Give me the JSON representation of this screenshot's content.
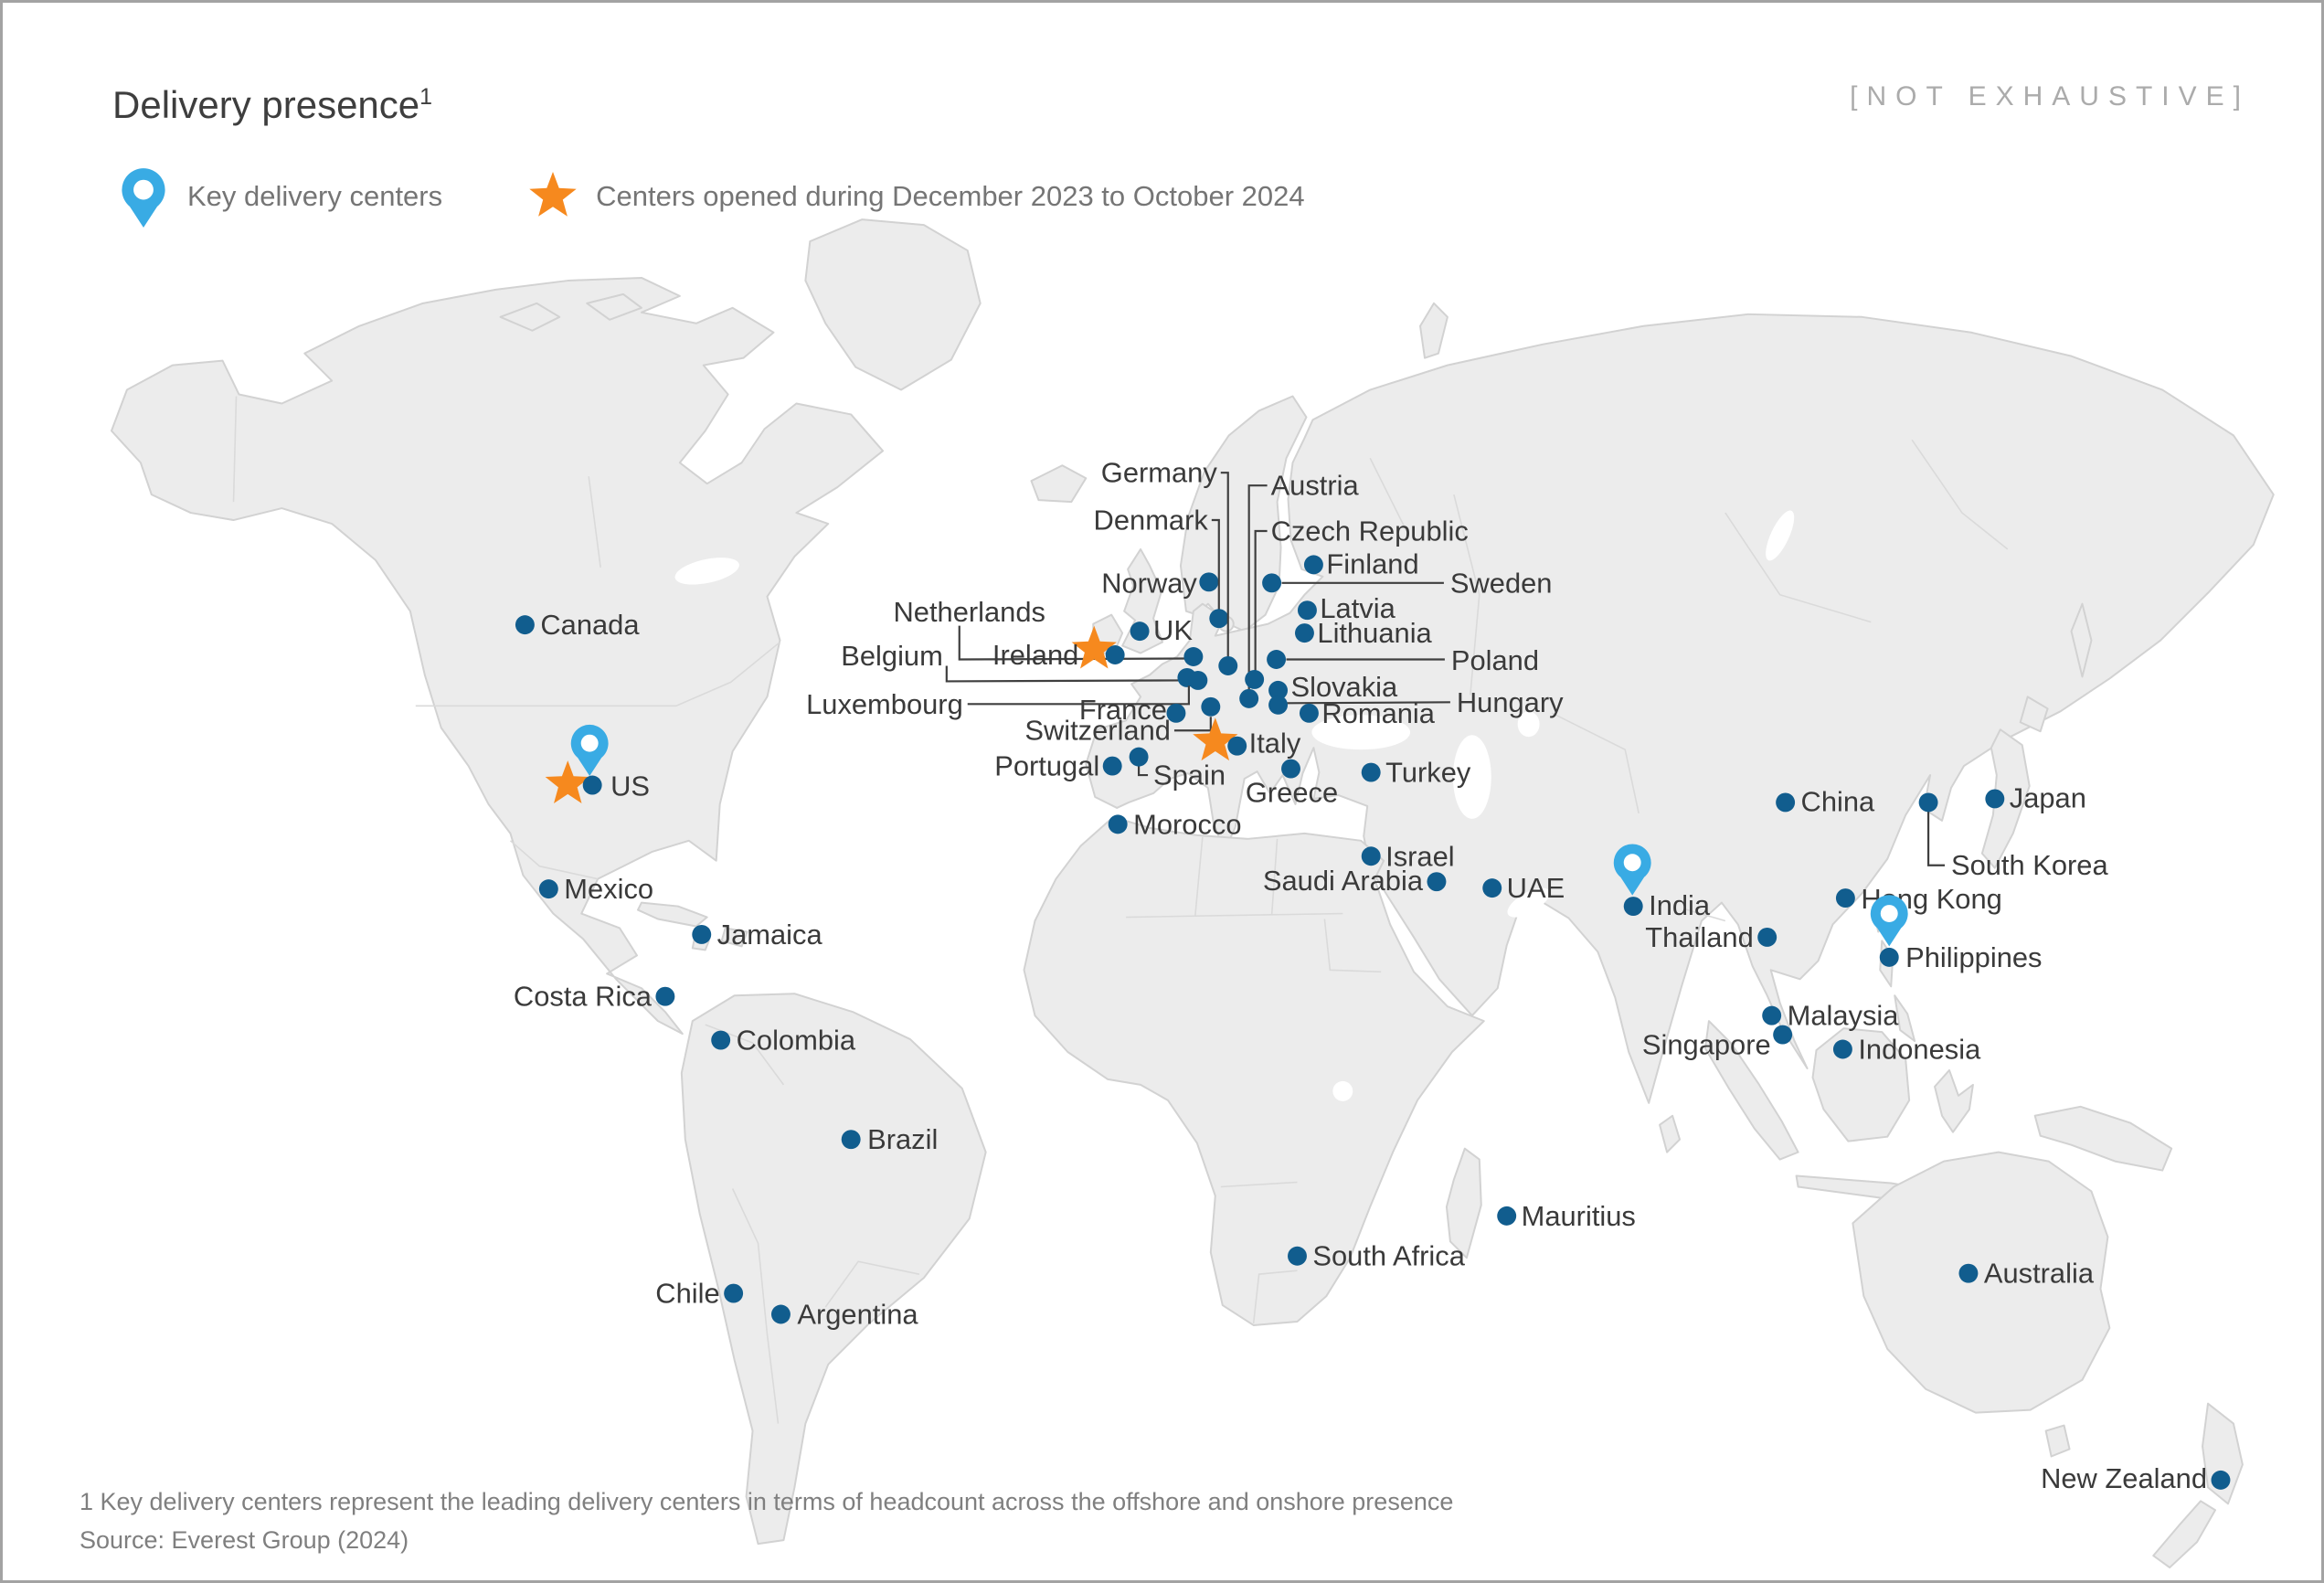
{
  "slide": {
    "title": "Delivery presence",
    "title_superscript": "1",
    "tag": "[NOT EXHAUSTIVE]"
  },
  "legend": {
    "items": [
      {
        "icon": "pin-icon",
        "label": "Key delivery centers"
      },
      {
        "icon": "star-icon",
        "label": "Centers opened during December 2023 to October 2024"
      }
    ]
  },
  "footnote": {
    "line1": "1 Key delivery centers represent the leading delivery centers in terms of headcount across the offshore and onshore presence",
    "line2": "Source: Everest Group (2024)"
  },
  "colors": {
    "dot": "#115d8e",
    "pin": "#39abe4",
    "star": "#f6891e",
    "land": "#ececec",
    "land_border": "#d2d2d2",
    "label_text": "#3a3a3a",
    "muted_text": "#757575",
    "tag_text": "#ababab",
    "line": "#3f3f3f"
  },
  "map": {
    "markers": [
      {
        "name": "canada",
        "label": "Canada",
        "dot": [
          572,
          683
        ],
        "label_pos": [
          589,
          683
        ],
        "align": "left"
      },
      {
        "name": "us",
        "label": "US",
        "dot": [
          646,
          859
        ],
        "label_pos": [
          666,
          860
        ],
        "align": "left",
        "star": [
          619,
          858
        ],
        "pin": [
          643,
          849
        ]
      },
      {
        "name": "mexico",
        "label": "Mexico",
        "dot": [
          598,
          973
        ],
        "label_pos": [
          615,
          973
        ],
        "align": "left"
      },
      {
        "name": "jamaica",
        "label": "Jamaica",
        "dot": [
          766,
          1023
        ],
        "label_pos": [
          783,
          1023
        ],
        "align": "left"
      },
      {
        "name": "costa-rica",
        "label": "Costa Rica",
        "dot": [
          726,
          1091
        ],
        "label_pos": [
          711,
          1091
        ],
        "align": "right"
      },
      {
        "name": "colombia",
        "label": "Colombia",
        "dot": [
          787,
          1139
        ],
        "label_pos": [
          804,
          1139
        ],
        "align": "left"
      },
      {
        "name": "brazil",
        "label": "Brazil",
        "dot": [
          930,
          1248
        ],
        "label_pos": [
          948,
          1248
        ],
        "align": "left"
      },
      {
        "name": "chile",
        "label": "Chile",
        "dot": [
          801,
          1417
        ],
        "label_pos": [
          786,
          1417
        ],
        "align": "right"
      },
      {
        "name": "argentina",
        "label": "Argentina",
        "dot": [
          853,
          1440
        ],
        "label_pos": [
          871,
          1440
        ],
        "align": "left"
      },
      {
        "name": "norway",
        "label": "Norway",
        "dot": [
          1323,
          636
        ],
        "label_pos": [
          1310,
          637
        ],
        "align": "right"
      },
      {
        "name": "sweden",
        "label": "Sweden",
        "dot": [
          1392,
          637
        ],
        "label_pos": [
          1588,
          637
        ],
        "align": "left",
        "line": [
          [
            1403,
            637
          ],
          [
            1581,
            637
          ]
        ]
      },
      {
        "name": "finland",
        "label": "Finland",
        "dot": [
          1438,
          617
        ],
        "label_pos": [
          1452,
          616
        ],
        "align": "left"
      },
      {
        "name": "denmark",
        "label": "Denmark",
        "dot": [
          1334,
          676
        ],
        "label_pos": [
          1322,
          568
        ],
        "align": "right",
        "line": [
          [
            1326,
            568
          ],
          [
            1334,
            568
          ],
          [
            1334,
            668
          ]
        ]
      },
      {
        "name": "germany",
        "label": "Germany",
        "dot": [
          1344,
          728
        ],
        "label_pos": [
          1332,
          516
        ],
        "align": "right",
        "line": [
          [
            1336,
            516
          ],
          [
            1344,
            516
          ],
          [
            1344,
            720
          ]
        ]
      },
      {
        "name": "netherlands",
        "label": "Netherlands",
        "dot": [
          1306,
          718
        ],
        "label_pos": [
          1060,
          669
        ],
        "align": "center",
        "line": [
          [
            1049,
            684
          ],
          [
            1049,
            721
          ],
          [
            1297,
            720
          ]
        ]
      },
      {
        "name": "belgium",
        "label": "Belgium",
        "dot": [
          1299,
          741
        ],
        "label_pos": [
          1031,
          717
        ],
        "align": "right",
        "line": [
          [
            1035,
            728
          ],
          [
            1035,
            745
          ],
          [
            1291,
            744
          ]
        ]
      },
      {
        "name": "luxembourg",
        "label": "Luxembourg",
        "dot": [
          1311,
          744
        ],
        "label_pos": [
          1053,
          770
        ],
        "align": "right",
        "line": [
          [
            1058,
            770
          ],
          [
            1301,
            770
          ],
          [
            1301,
            750
          ]
        ]
      },
      {
        "name": "ireland",
        "label": "Ireland",
        "dot": [
          1220,
          716
        ],
        "label_pos": [
          1180,
          716
        ],
        "align": "right",
        "star": [
          1197,
          710
        ]
      },
      {
        "name": "uk",
        "label": "UK",
        "dot": [
          1247,
          690
        ],
        "label_pos": [
          1262,
          689
        ],
        "align": "left"
      },
      {
        "name": "france",
        "label": "France",
        "dot": [
          1287,
          780
        ],
        "label_pos": [
          1277,
          776
        ],
        "align": "right"
      },
      {
        "name": "switzerland",
        "label": "Switzerland",
        "dot": [
          1325,
          773
        ],
        "label_pos": [
          1281,
          799
        ],
        "align": "right",
        "line": [
          [
            1285,
            799
          ],
          [
            1325,
            799
          ],
          [
            1325,
            784
          ]
        ]
      },
      {
        "name": "italy",
        "label": "Italy",
        "dot": [
          1354,
          816
        ],
        "label_pos": [
          1367,
          813
        ],
        "align": "left",
        "star": [
          1330,
          811
        ]
      },
      {
        "name": "spain",
        "label": "Spain",
        "dot": [
          1246,
          828
        ],
        "label_pos": [
          1262,
          848
        ],
        "align": "left",
        "line": [
          [
            1246,
            838
          ],
          [
            1246,
            848
          ],
          [
            1256,
            848
          ]
        ]
      },
      {
        "name": "portugal",
        "label": "Portugal",
        "dot": [
          1217,
          838
        ],
        "label_pos": [
          1203,
          838
        ],
        "align": "right"
      },
      {
        "name": "austria",
        "label": "Austria",
        "dot": [
          1367,
          764
        ],
        "label_pos": [
          1391,
          530
        ],
        "align": "left",
        "line": [
          [
            1387,
            530
          ],
          [
            1367,
            530
          ],
          [
            1367,
            756
          ]
        ]
      },
      {
        "name": "czech-republic",
        "label": "Czech Republic",
        "dot": [
          1373,
          743
        ],
        "label_pos": [
          1391,
          580
        ],
        "align": "left",
        "line": [
          [
            1387,
            580
          ],
          [
            1374,
            580
          ],
          [
            1374,
            735
          ]
        ]
      },
      {
        "name": "latvia",
        "label": "Latvia",
        "dot": [
          1431,
          667
        ],
        "label_pos": [
          1445,
          665
        ],
        "align": "left"
      },
      {
        "name": "lithuania",
        "label": "Lithuania",
        "dot": [
          1428,
          692
        ],
        "label_pos": [
          1442,
          692
        ],
        "align": "left"
      },
      {
        "name": "poland",
        "label": "Poland",
        "dot": [
          1397,
          721
        ],
        "label_pos": [
          1589,
          722
        ],
        "align": "left",
        "line": [
          [
            1408,
            721
          ],
          [
            1582,
            721
          ]
        ]
      },
      {
        "name": "slovakia",
        "label": "Slovakia",
        "dot": [
          1399,
          755
        ],
        "label_pos": [
          1413,
          751
        ],
        "align": "left"
      },
      {
        "name": "hungary",
        "label": "Hungary",
        "dot": [
          1399,
          771
        ],
        "label_pos": [
          1595,
          768
        ],
        "align": "left",
        "line": [
          [
            1409,
            769
          ],
          [
            1588,
            768
          ]
        ]
      },
      {
        "name": "romania",
        "label": "Romania",
        "dot": [
          1433,
          780
        ],
        "label_pos": [
          1447,
          780
        ],
        "align": "left"
      },
      {
        "name": "greece",
        "label": "Greece",
        "dot": [
          1413,
          841
        ],
        "label_pos": [
          1414,
          867
        ],
        "align": "center"
      },
      {
        "name": "turkey",
        "label": "Turkey",
        "dot": [
          1501,
          845
        ],
        "label_pos": [
          1517,
          845
        ],
        "align": "left"
      },
      {
        "name": "morocco",
        "label": "Morocco",
        "dot": [
          1223,
          902
        ],
        "label_pos": [
          1240,
          902
        ],
        "align": "left"
      },
      {
        "name": "israel",
        "label": "Israel",
        "dot": [
          1501,
          937
        ],
        "label_pos": [
          1517,
          937
        ],
        "align": "left"
      },
      {
        "name": "saudi-arabia",
        "label": "Saudi Arabia",
        "dot": [
          1573,
          965
        ],
        "label_pos": [
          1558,
          964
        ],
        "align": "right"
      },
      {
        "name": "uae",
        "label": "UAE",
        "dot": [
          1634,
          972
        ],
        "label_pos": [
          1650,
          972
        ],
        "align": "left"
      },
      {
        "name": "south-africa",
        "label": "South Africa",
        "dot": [
          1420,
          1376
        ],
        "label_pos": [
          1437,
          1376
        ],
        "align": "left"
      },
      {
        "name": "mauritius",
        "label": "Mauritius",
        "dot": [
          1650,
          1332
        ],
        "label_pos": [
          1666,
          1332
        ],
        "align": "left"
      },
      {
        "name": "india",
        "label": "India",
        "dot": [
          1789,
          992
        ],
        "label_pos": [
          1806,
          991
        ],
        "align": "left",
        "pin": [
          1788,
          980
        ]
      },
      {
        "name": "china",
        "label": "China",
        "dot": [
          1956,
          878
        ],
        "label_pos": [
          1973,
          877
        ],
        "align": "left"
      },
      {
        "name": "hong-kong",
        "label": "Hong Kong",
        "dot": [
          2022,
          983
        ],
        "label_pos": [
          2039,
          984
        ],
        "align": "left"
      },
      {
        "name": "japan",
        "label": "Japan",
        "dot": [
          2186,
          874
        ],
        "label_pos": [
          2202,
          873
        ],
        "align": "left"
      },
      {
        "name": "south-korea",
        "label": "South Korea",
        "dot": [
          2113,
          878
        ],
        "label_pos": [
          2138,
          947
        ],
        "align": "left",
        "line": [
          [
            2113,
            888
          ],
          [
            2113,
            947
          ],
          [
            2131,
            947
          ]
        ]
      },
      {
        "name": "thailand",
        "label": "Thailand",
        "dot": [
          1936,
          1026
        ],
        "label_pos": [
          1921,
          1026
        ],
        "align": "right"
      },
      {
        "name": "philippines",
        "label": "Philippines",
        "dot": [
          2070,
          1048
        ],
        "label_pos": [
          2088,
          1048
        ],
        "align": "left",
        "pin": [
          2070,
          1036
        ]
      },
      {
        "name": "malaysia",
        "label": "Malaysia",
        "dot": [
          1941,
          1112
        ],
        "label_pos": [
          1958,
          1112
        ],
        "align": "left"
      },
      {
        "name": "singapore",
        "label": "Singapore",
        "dot": [
          1953,
          1133
        ],
        "label_pos": [
          1940,
          1144
        ],
        "align": "right"
      },
      {
        "name": "indonesia",
        "label": "Indonesia",
        "dot": [
          2019,
          1149
        ],
        "label_pos": [
          2036,
          1149
        ],
        "align": "left"
      },
      {
        "name": "australia",
        "label": "Australia",
        "dot": [
          2157,
          1395
        ],
        "label_pos": [
          2174,
          1395
        ],
        "align": "left"
      },
      {
        "name": "new-zealand",
        "label": "New Zealand",
        "dot": [
          2434,
          1622
        ],
        "label_pos": [
          2419,
          1620
        ],
        "align": "right"
      }
    ]
  }
}
